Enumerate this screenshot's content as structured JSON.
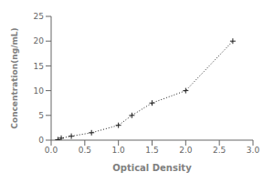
{
  "chart_data": {
    "type": "line",
    "xlabel": "Optical Density",
    "ylabel": "Concentration(ng/mL)",
    "x": [
      0.1,
      0.15,
      0.3,
      0.6,
      1.0,
      1.2,
      1.5,
      2.0,
      2.7
    ],
    "values": [
      0.1,
      0.4,
      0.8,
      1.5,
      3.0,
      5.0,
      7.5,
      10.0,
      20.0
    ],
    "color": "#222222",
    "marker": "plus",
    "line_style": "dotted",
    "xlim": [
      0,
      3
    ],
    "ylim": [
      0,
      25
    ],
    "xticks": [
      {
        "value": 0,
        "label": "0.0"
      },
      0.5,
      {
        "value": 1,
        "label": "1.0"
      },
      1.5,
      {
        "value": 2,
        "label": "2.0"
      },
      2.5,
      {
        "value": 3,
        "label": "3.0"
      }
    ],
    "yticks": [
      0,
      5,
      10,
      15,
      20,
      25
    ]
  }
}
